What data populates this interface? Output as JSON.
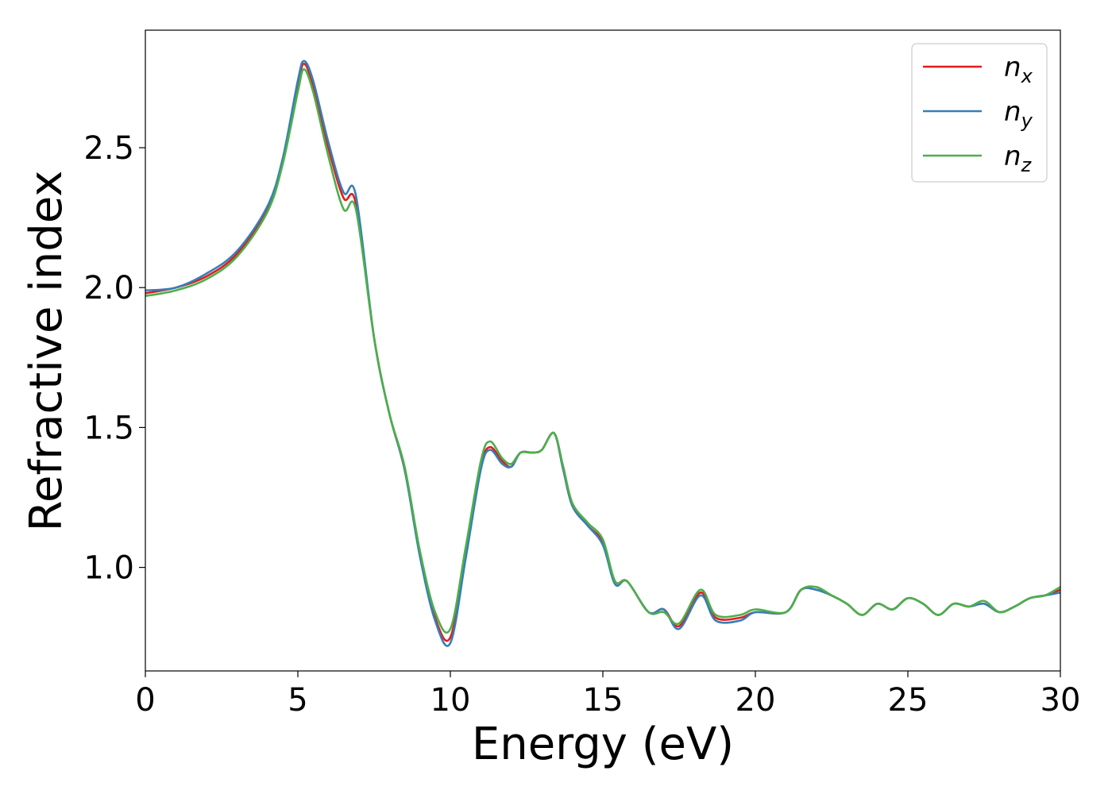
{
  "chart_data": {
    "type": "line",
    "xlabel": "Energy (eV)",
    "ylabel": "Refractive index",
    "xlim": [
      0,
      30
    ],
    "ylim": [
      0.63,
      2.92
    ],
    "xticks": [
      0,
      5,
      10,
      15,
      20,
      25,
      30
    ],
    "xtick_labels": [
      "0",
      "5",
      "10",
      "15",
      "20",
      "25",
      "30"
    ],
    "yticks": [
      1.0,
      1.5,
      2.0,
      2.5
    ],
    "ytick_labels": [
      "1.0",
      "1.5",
      "2.0",
      "2.5"
    ],
    "grid": false,
    "legend_position": "top-right",
    "x": [
      0,
      1,
      2,
      3,
      4,
      4.5,
      5,
      5.2,
      5.5,
      6,
      6.5,
      6.9,
      7.5,
      8,
      8.5,
      9,
      9.5,
      10,
      10.5,
      11,
      11.3,
      11.7,
      12,
      12.3,
      12.7,
      13,
      13.4,
      13.7,
      14,
      14.5,
      15,
      15.4,
      15.8,
      16.5,
      17,
      17.5,
      18.2,
      18.7,
      19.5,
      20,
      21,
      21.5,
      22,
      22.5,
      23,
      23.5,
      24,
      24.5,
      25,
      25.5,
      26,
      26.5,
      27,
      27.5,
      28,
      28.5,
      29,
      29.5,
      30
    ],
    "series": [
      {
        "name": "n_x",
        "label_main": "n",
        "label_sub": "x",
        "color": "#e41a1c",
        "values": [
          1.98,
          2.0,
          2.04,
          2.12,
          2.28,
          2.45,
          2.72,
          2.8,
          2.72,
          2.5,
          2.32,
          2.3,
          1.82,
          1.55,
          1.35,
          1.05,
          0.82,
          0.75,
          1.05,
          1.36,
          1.43,
          1.38,
          1.36,
          1.41,
          1.41,
          1.42,
          1.48,
          1.35,
          1.22,
          1.15,
          1.09,
          0.95,
          0.95,
          0.84,
          0.85,
          0.79,
          0.91,
          0.82,
          0.82,
          0.84,
          0.84,
          0.92,
          0.92,
          0.9,
          0.87,
          0.83,
          0.87,
          0.85,
          0.89,
          0.87,
          0.83,
          0.87,
          0.86,
          0.87,
          0.84,
          0.86,
          0.89,
          0.9,
          0.92
        ]
      },
      {
        "name": "n_y",
        "label_main": "n",
        "label_sub": "y",
        "color": "#377eb8",
        "values": [
          1.99,
          2.0,
          2.05,
          2.13,
          2.29,
          2.46,
          2.74,
          2.81,
          2.74,
          2.52,
          2.34,
          2.33,
          1.82,
          1.55,
          1.35,
          1.04,
          0.81,
          0.73,
          1.03,
          1.35,
          1.42,
          1.37,
          1.36,
          1.41,
          1.41,
          1.42,
          1.48,
          1.35,
          1.22,
          1.15,
          1.08,
          0.94,
          0.95,
          0.84,
          0.85,
          0.78,
          0.9,
          0.81,
          0.81,
          0.84,
          0.84,
          0.92,
          0.92,
          0.9,
          0.87,
          0.83,
          0.87,
          0.85,
          0.89,
          0.87,
          0.83,
          0.87,
          0.86,
          0.87,
          0.84,
          0.86,
          0.89,
          0.9,
          0.91
        ]
      },
      {
        "name": "n_z",
        "label_main": "n",
        "label_sub": "z",
        "color": "#4daf4a",
        "values": [
          1.97,
          1.99,
          2.03,
          2.11,
          2.27,
          2.44,
          2.7,
          2.78,
          2.7,
          2.47,
          2.28,
          2.28,
          1.82,
          1.55,
          1.36,
          1.06,
          0.84,
          0.78,
          1.07,
          1.38,
          1.45,
          1.39,
          1.37,
          1.41,
          1.41,
          1.42,
          1.48,
          1.36,
          1.23,
          1.16,
          1.1,
          0.95,
          0.95,
          0.84,
          0.84,
          0.8,
          0.92,
          0.83,
          0.83,
          0.85,
          0.84,
          0.92,
          0.93,
          0.9,
          0.87,
          0.83,
          0.87,
          0.85,
          0.89,
          0.87,
          0.83,
          0.87,
          0.86,
          0.88,
          0.84,
          0.86,
          0.89,
          0.9,
          0.93
        ]
      }
    ]
  }
}
